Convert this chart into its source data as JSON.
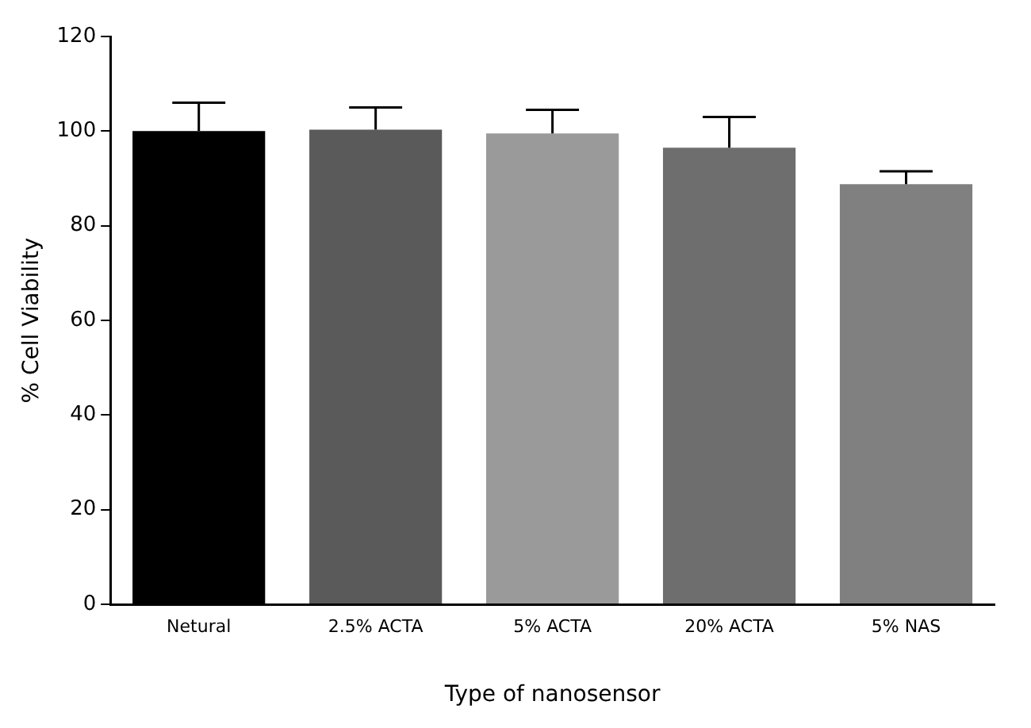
{
  "chart_data": {
    "type": "bar",
    "xlabel": "Type of nanosensor",
    "ylabel": "% Cell Viability",
    "categories": [
      "Netural",
      "2.5% ACTA",
      "5% ACTA",
      "20% ACTA",
      "5% NAS"
    ],
    "values": [
      100,
      100.3,
      99.5,
      96.5,
      88.8
    ],
    "errors": [
      [
        100,
        106
      ],
      [
        100.3,
        105
      ],
      [
        99.5,
        104.5
      ],
      [
        96.5,
        103
      ],
      [
        88.8,
        91.5
      ]
    ],
    "colors": [
      "#000000",
      "#5a5a5a",
      "#9a9a9a",
      "#6e6e6e",
      "#808080"
    ],
    "ylim": [
      0,
      120
    ],
    "yticks": [
      0,
      20,
      40,
      60,
      80,
      100,
      120
    ],
    "grid": false,
    "legend": false
  }
}
